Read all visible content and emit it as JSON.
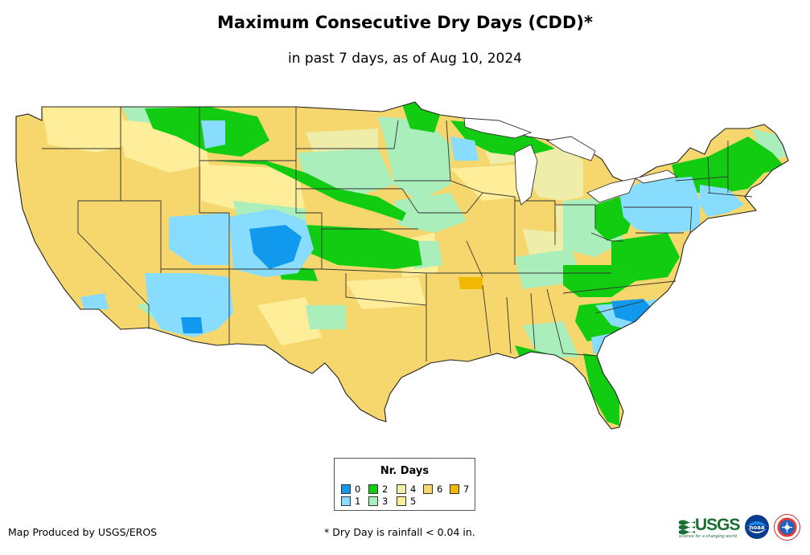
{
  "title": "Maximum Consecutive Dry Days (CDD)*",
  "subtitle": "in past 7 days, as of Aug 10, 2024",
  "legend": {
    "title": "Nr. Days",
    "items": [
      {
        "label": "0",
        "color": "#1199ee"
      },
      {
        "label": "1",
        "color": "#88ddff"
      },
      {
        "label": "2",
        "color": "#11cc11"
      },
      {
        "label": "3",
        "color": "#aaeebb"
      },
      {
        "label": "4",
        "color": "#eeeeaa"
      },
      {
        "label": "5",
        "color": "#ffee99"
      },
      {
        "label": "6",
        "color": "#f5d76e"
      },
      {
        "label": "7",
        "color": "#f0b800"
      }
    ]
  },
  "footer": {
    "credit": "Map Produced by USGS/EROS",
    "note": "* Dry Day is rainfall < 0.04 in."
  },
  "logos": {
    "usgs_text": "USGS",
    "usgs_tagline": "science for a changing world",
    "noaa_text": "noaa"
  },
  "map_colors": {
    "base": "#f5d76e",
    "state_border": "#333333",
    "water": "#ffffff"
  }
}
